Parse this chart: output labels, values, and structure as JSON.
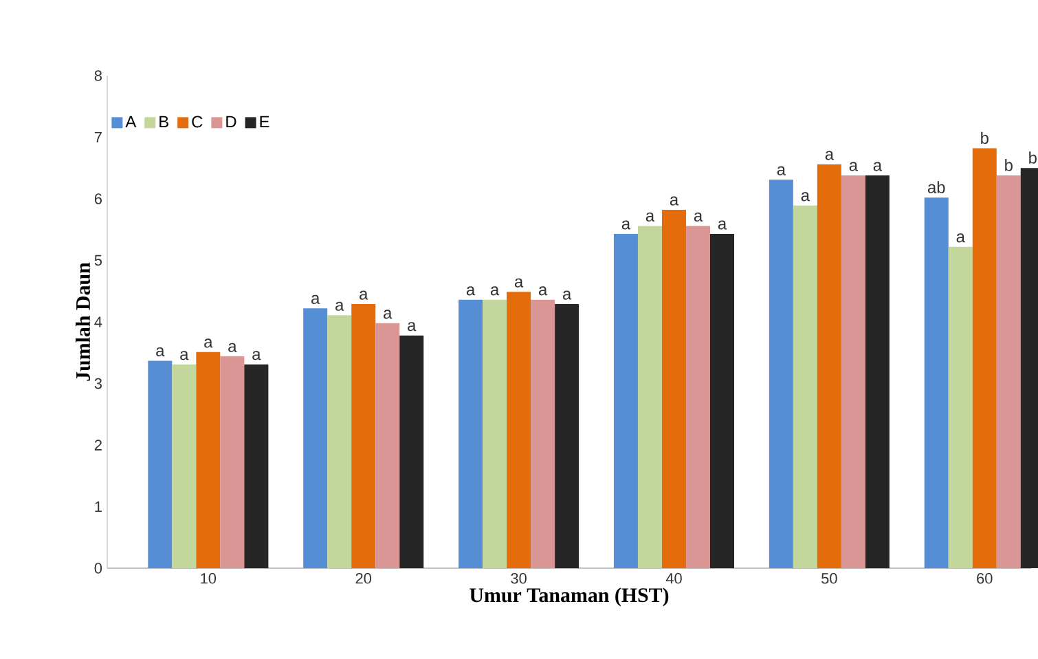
{
  "chart_data": {
    "type": "bar",
    "xlabel": "Umur Tanaman (HST)",
    "ylabel": "Jumlah Daun",
    "categories": [
      "10",
      "20",
      "30",
      "40",
      "50",
      "60"
    ],
    "series": [
      {
        "name": "A",
        "color": "#558ed5",
        "values": [
          3.37,
          4.22,
          4.36,
          5.43,
          6.31,
          6.02
        ],
        "value_labels": [
          "a",
          "a",
          "a",
          "a",
          "a",
          "ab"
        ]
      },
      {
        "name": "B",
        "color": "#c3d69b",
        "values": [
          3.31,
          4.11,
          4.36,
          5.56,
          5.89,
          5.22
        ],
        "value_labels": [
          "a",
          "a",
          "a",
          "a",
          "a",
          "a"
        ]
      },
      {
        "name": "C",
        "color": "#e46c0a",
        "values": [
          3.51,
          4.29,
          4.49,
          5.82,
          6.56,
          6.82
        ],
        "value_labels": [
          "a",
          "a",
          "a",
          "a",
          "a",
          "b"
        ]
      },
      {
        "name": "D",
        "color": "#d99694",
        "values": [
          3.44,
          3.98,
          4.36,
          5.56,
          6.38,
          6.38
        ],
        "value_labels": [
          "a",
          "a",
          "a",
          "a",
          "a",
          "b"
        ]
      },
      {
        "name": "E",
        "color": "#262626",
        "values": [
          3.31,
          3.78,
          4.29,
          5.43,
          6.38,
          6.5
        ],
        "value_labels": [
          "a",
          "a",
          "a",
          "a",
          "a",
          "b"
        ]
      }
    ],
    "ylim": [
      0,
      8
    ],
    "yticks": [
      0,
      1,
      2,
      3,
      4,
      5,
      6,
      7,
      8
    ],
    "grid": false,
    "legend": "top left"
  }
}
